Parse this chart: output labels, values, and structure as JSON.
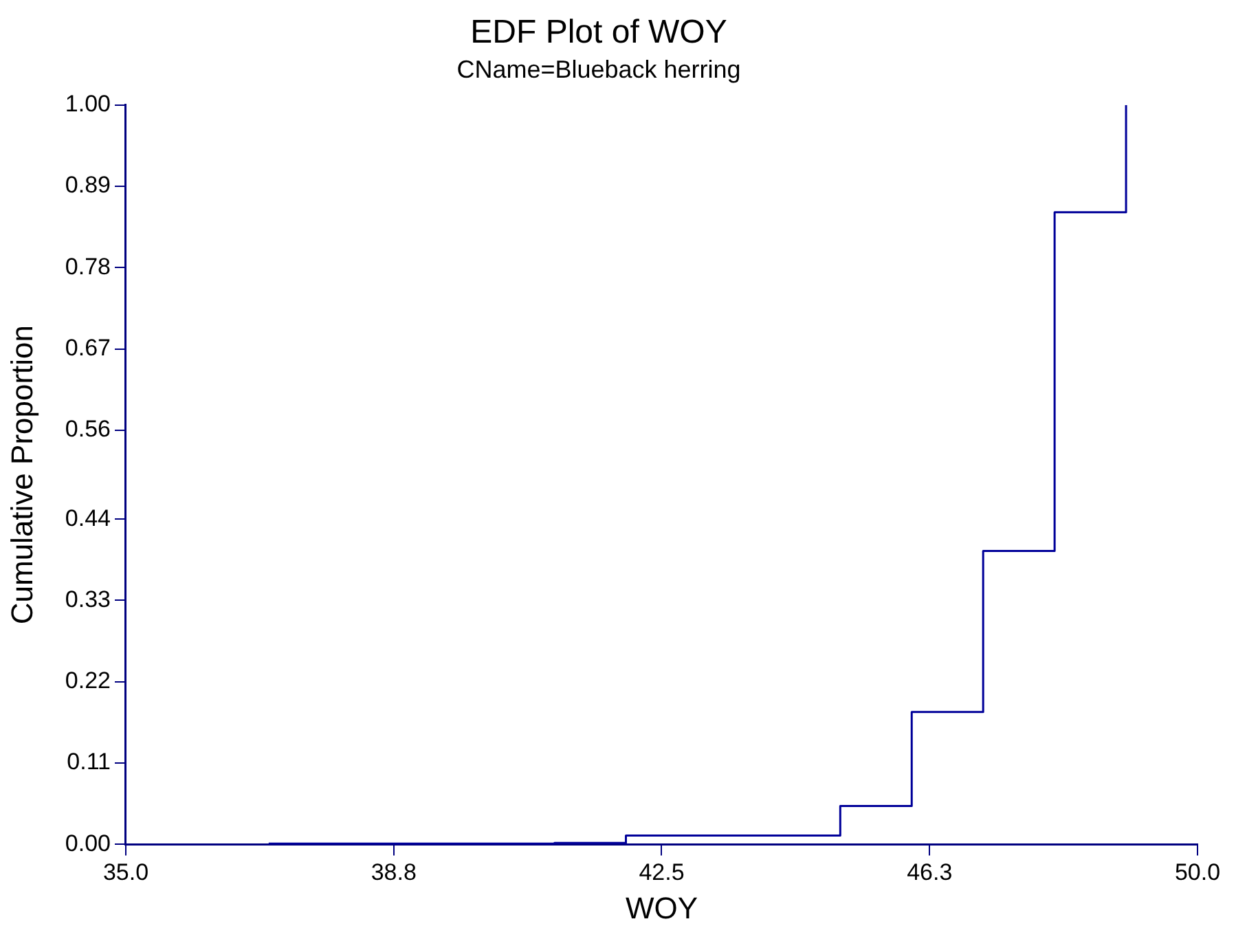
{
  "chart_data": {
    "type": "step",
    "title": "EDF Plot of WOY",
    "subtitle": "CName=Blueback herring",
    "xlabel": "WOY",
    "ylabel": "Cumulative Proportion",
    "x": [
      37,
      41,
      42,
      45,
      46,
      47,
      48,
      49
    ],
    "series": [
      {
        "color": "#000099",
        "values": [
          0.001,
          0.002,
          0.012,
          0.052,
          0.179,
          0.397,
          0.855,
          1.0
        ]
      }
    ],
    "xlim": [
      35,
      50
    ],
    "xticks": [
      {
        "value": 35,
        "label": "35.0"
      },
      {
        "value": 38.75,
        "label": "38.8"
      },
      {
        "value": 42.5,
        "label": "42.5"
      },
      {
        "value": 46.25,
        "label": "46.3"
      },
      {
        "value": 50,
        "label": "50.0"
      }
    ],
    "ylim": [
      0,
      1
    ],
    "yticks": [
      {
        "value": 0,
        "label": "0.00"
      },
      0.11,
      0.22,
      0.33,
      0.44,
      0.56,
      0.67,
      0.78,
      0.89,
      {
        "value": 1,
        "label": "1.00"
      }
    ],
    "grid": false,
    "legend": false,
    "marker": "none",
    "line_style": "solid"
  }
}
